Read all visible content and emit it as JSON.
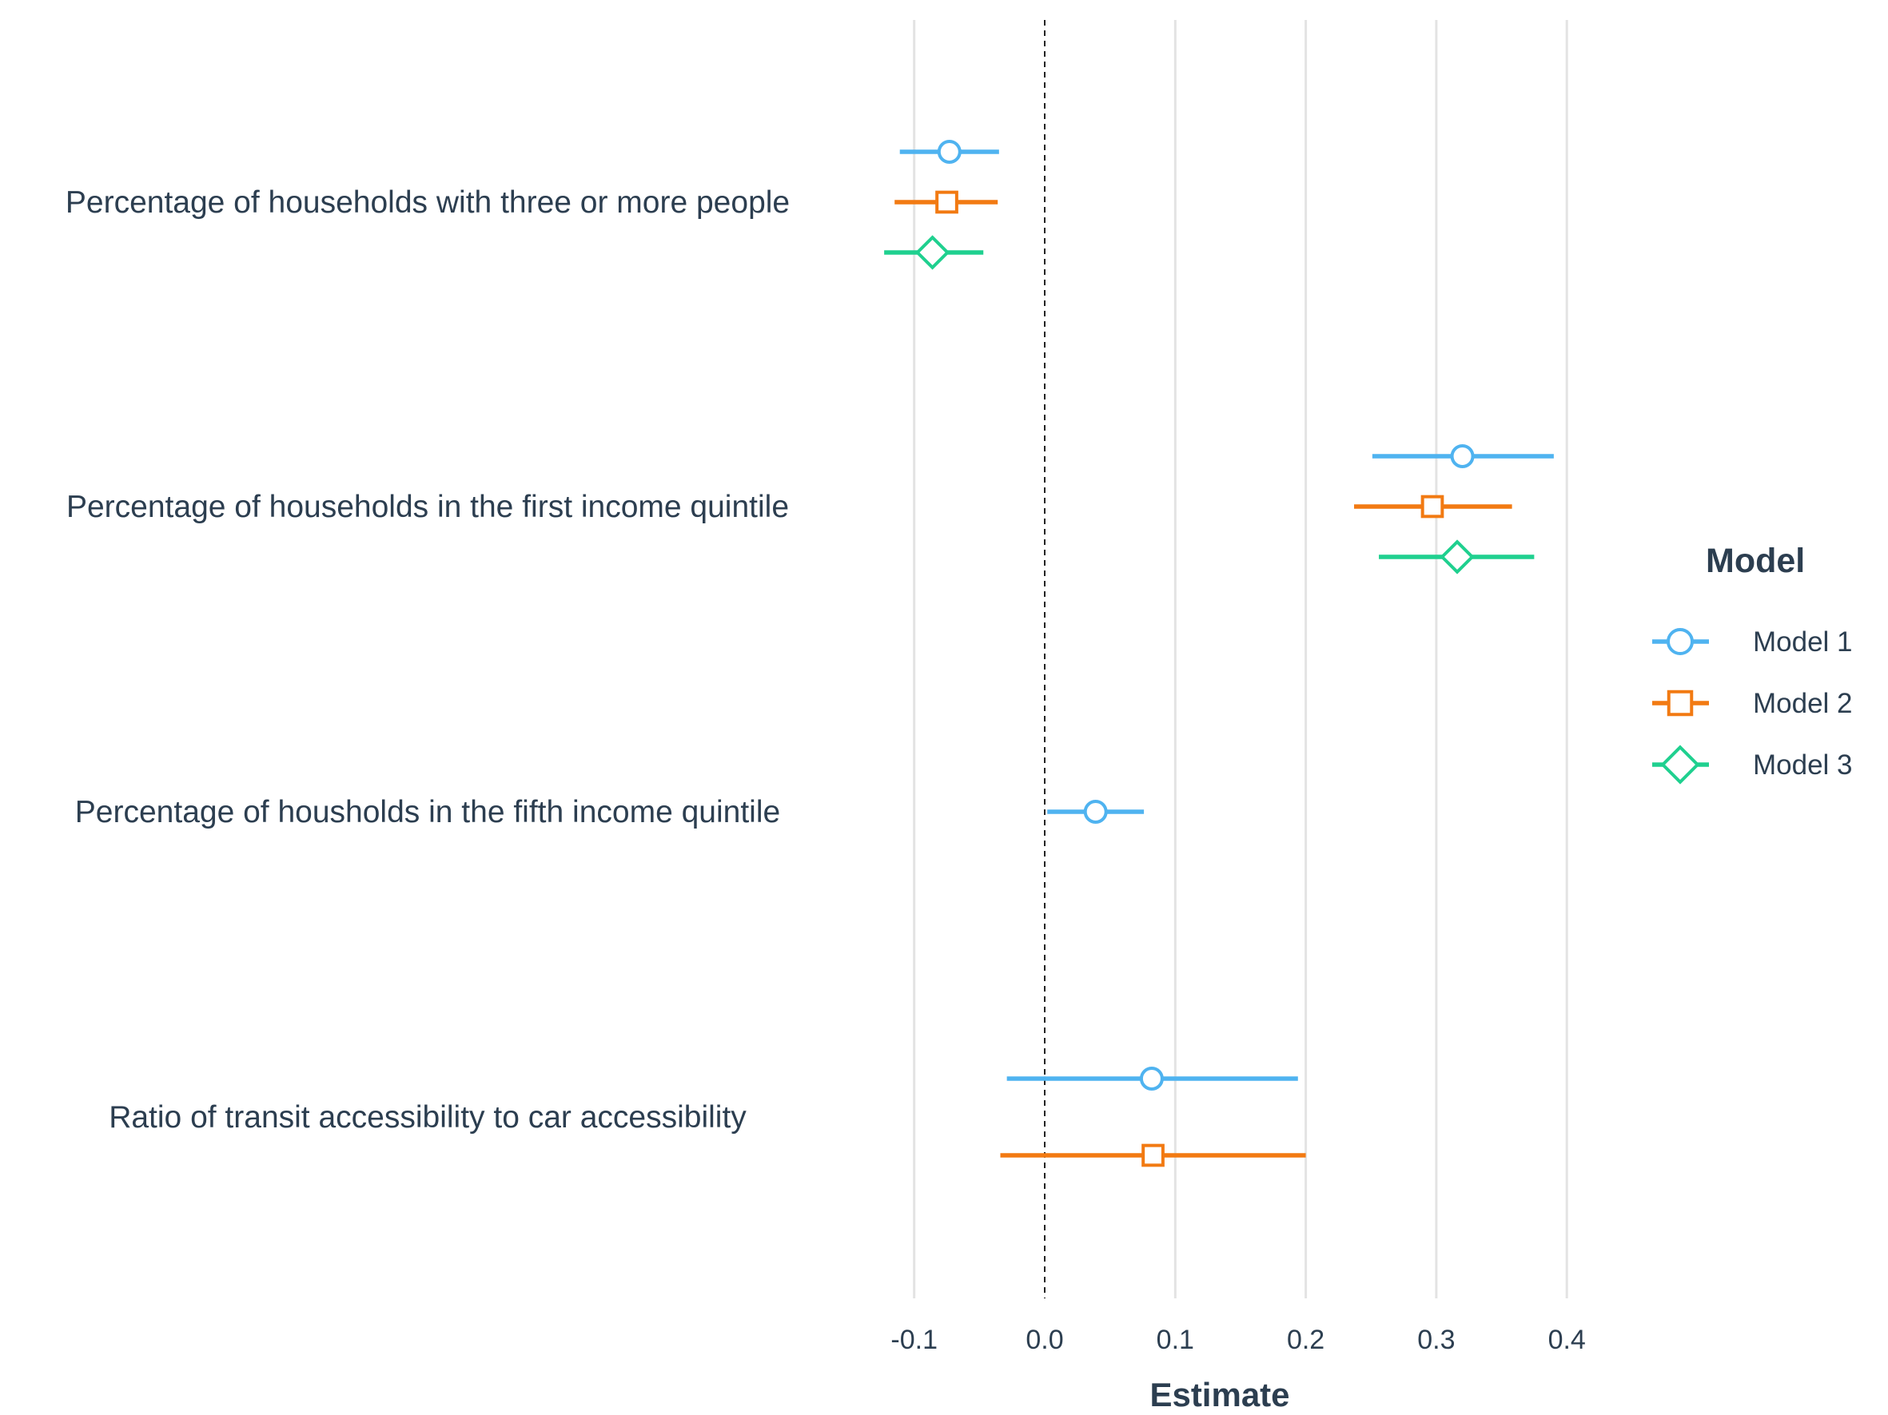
{
  "chart_data": {
    "type": "scatter",
    "subtype": "coefficient-plot",
    "title": "",
    "xlabel": "Estimate",
    "ylabel": "",
    "xlim": [
      -0.125,
      0.415
    ],
    "x_ticks": [
      -0.1,
      0.0,
      0.1,
      0.2,
      0.3,
      0.4
    ],
    "x_tick_labels": [
      "-0.1",
      "0.0",
      "0.1",
      "0.2",
      "0.3",
      "0.4"
    ],
    "grid": "vertical",
    "reference_line": 0.0,
    "legend": {
      "title": "Model",
      "placement": "right"
    },
    "categories": [
      "Percentage of households with three or more people",
      "Percentage of households in the first income quintile",
      "Percentage of housholds in the fifth income quintile",
      "Ratio of transit accessibility to car accessibility"
    ],
    "series": [
      {
        "name": "Model 1",
        "color": "#4fb3f0",
        "marker": "circle",
        "points": [
          {
            "category": 0,
            "estimate": -0.073,
            "low": -0.111,
            "high": -0.035
          },
          {
            "category": 1,
            "estimate": 0.32,
            "low": 0.251,
            "high": 0.39
          },
          {
            "category": 2,
            "estimate": 0.039,
            "low": 0.002,
            "high": 0.076
          },
          {
            "category": 3,
            "estimate": 0.082,
            "low": -0.029,
            "high": 0.194
          }
        ]
      },
      {
        "name": "Model 2",
        "color": "#f27a12",
        "marker": "square",
        "points": [
          {
            "category": 0,
            "estimate": -0.075,
            "low": -0.115,
            "high": -0.036
          },
          {
            "category": 1,
            "estimate": 0.297,
            "low": 0.237,
            "high": 0.358
          },
          {
            "category": 3,
            "estimate": 0.083,
            "low": -0.034,
            "high": 0.2
          }
        ]
      },
      {
        "name": "Model 3",
        "color": "#1fd08f",
        "marker": "diamond",
        "points": [
          {
            "category": 0,
            "estimate": -0.086,
            "low": -0.123,
            "high": -0.047
          },
          {
            "category": 1,
            "estimate": 0.316,
            "low": 0.256,
            "high": 0.375
          }
        ]
      }
    ]
  }
}
